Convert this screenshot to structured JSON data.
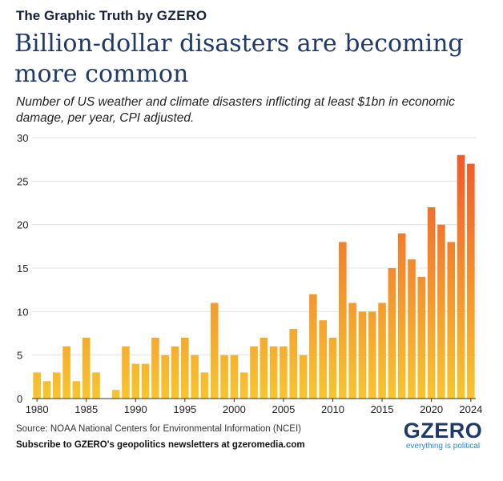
{
  "header": {
    "kicker_prefix": "The Graphic Truth by",
    "kicker_brand": "GZERO",
    "title": "Billion-dollar disasters are becoming more common",
    "subtitle": "Number of US weather and climate disasters inflicting at least $1bn in economic damage, per year, CPI adjusted."
  },
  "footer": {
    "source": "Source: NOAA National Centers for Environmental Information (NCEI)",
    "subscribe": "Subscribe to GZERO's geopolitics newsletters at gzeromedia.com",
    "logo_text": "GZERO",
    "logo_tagline": "everything is political"
  },
  "colors": {
    "bar_low": "#f7c52f",
    "bar_high": "#f0512a",
    "title": "#1f3a68",
    "tagline": "#1e88e5"
  },
  "chart_data": {
    "type": "bar",
    "title": "",
    "xlabel": "",
    "ylabel": "",
    "ylim": [
      0,
      30
    ],
    "yticks": [
      0,
      5,
      10,
      15,
      20,
      25,
      30
    ],
    "xticks": [
      1980,
      1985,
      1990,
      1995,
      2000,
      2005,
      2010,
      2015,
      2020,
      2024
    ],
    "grid": true,
    "x": [
      1980,
      1981,
      1982,
      1983,
      1984,
      1985,
      1986,
      1987,
      1988,
      1989,
      1990,
      1991,
      1992,
      1993,
      1994,
      1995,
      1996,
      1997,
      1998,
      1999,
      2000,
      2001,
      2002,
      2003,
      2004,
      2005,
      2006,
      2007,
      2008,
      2009,
      2010,
      2011,
      2012,
      2013,
      2014,
      2015,
      2016,
      2017,
      2018,
      2019,
      2020,
      2021,
      2022,
      2023,
      2024
    ],
    "values": [
      3,
      2,
      3,
      6,
      2,
      7,
      3,
      0,
      1,
      6,
      4,
      4,
      7,
      5,
      6,
      7,
      5,
      3,
      11,
      5,
      5,
      3,
      6,
      7,
      6,
      6,
      8,
      5,
      12,
      9,
      7,
      18,
      11,
      10,
      10,
      11,
      15,
      19,
      16,
      14,
      22,
      20,
      18,
      28,
      27
    ]
  }
}
